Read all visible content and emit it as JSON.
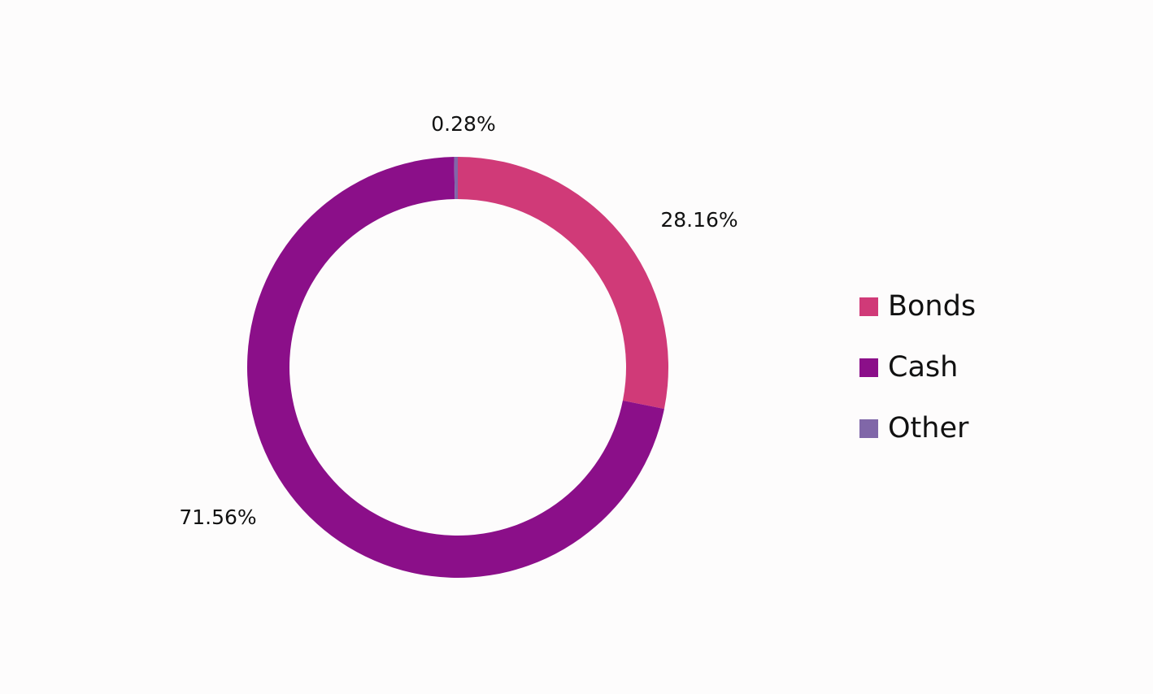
{
  "chart_data": {
    "type": "pie",
    "variant": "donut",
    "categories": [
      "Bonds",
      "Cash",
      "Other"
    ],
    "values": [
      28.16,
      71.56,
      0.28
    ],
    "data_labels": [
      "28.16%",
      "71.56%",
      "0.28%"
    ],
    "colors": [
      "#d03a78",
      "#8b0f89",
      "#8067a8"
    ],
    "legend_position": "right",
    "title": ""
  }
}
